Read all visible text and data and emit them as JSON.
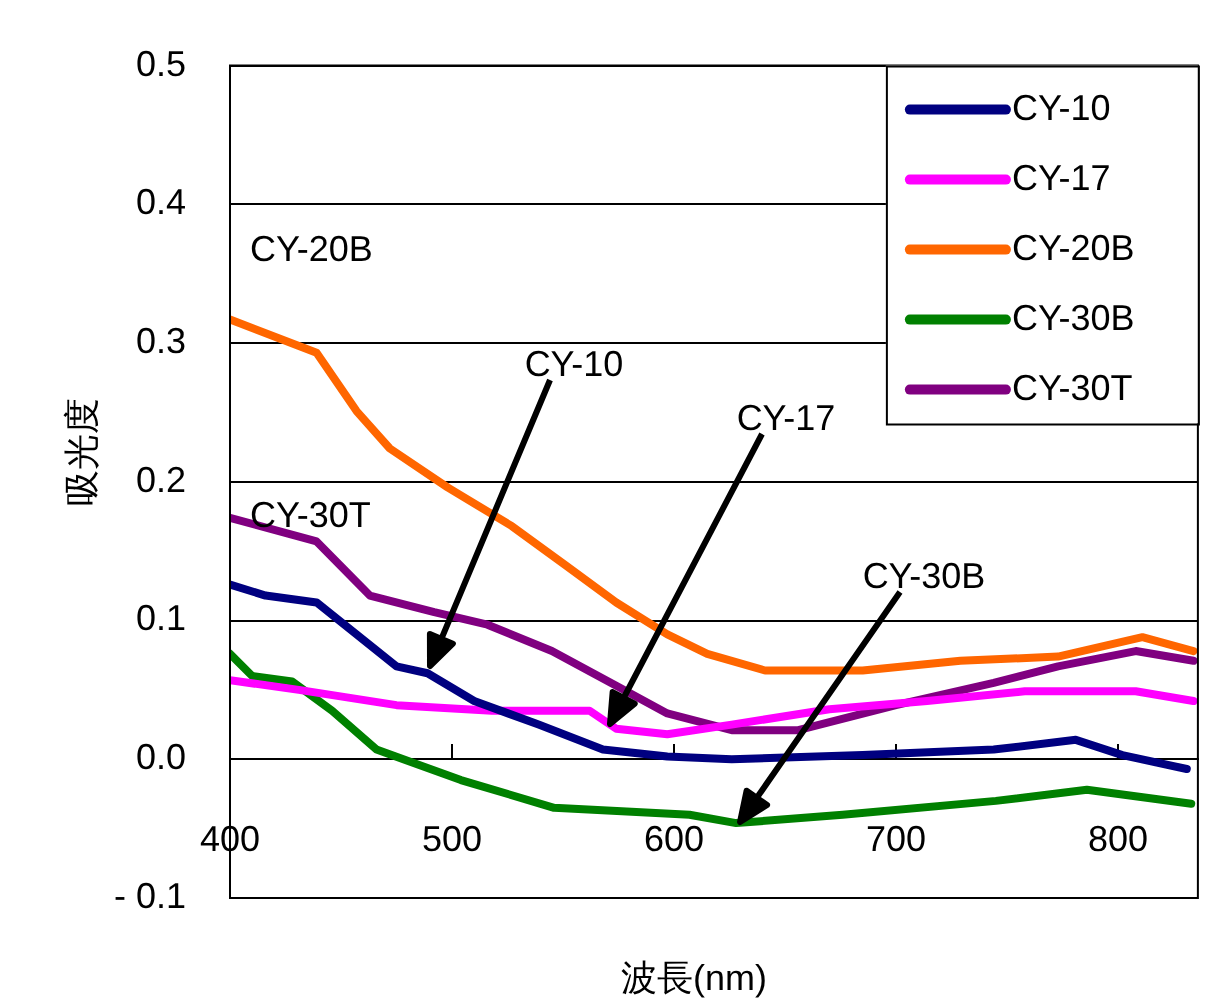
{
  "chart_data": {
    "type": "line",
    "xlabel": "波長(nm)",
    "ylabel": "吸光度",
    "xlim": [
      400,
      836
    ],
    "xticks": [
      400,
      500,
      600,
      700,
      800
    ],
    "ylim": [
      -0.1,
      0.5
    ],
    "yticks": [
      {
        "value": -0.1,
        "label": "- 0.1"
      },
      {
        "value": 0,
        "label": "0.0"
      },
      0.1,
      0.2,
      0.3,
      0.4,
      0.5
    ],
    "grid": "y",
    "legend": "top right",
    "marker": "none",
    "line_style": "solid",
    "series": [
      {
        "name": "CY-10",
        "color": "#000080",
        "x": [
          400,
          416,
          439,
          457,
          475,
          489,
          510,
          539,
          568,
          597,
          626,
          685,
          744,
          781,
          802,
          831
        ],
        "values": [
          0.126,
          0.118,
          0.113,
          0.09,
          0.067,
          0.062,
          0.042,
          0.025,
          0.007,
          0.002,
          0.0,
          0.003,
          0.007,
          0.014,
          0.003,
          -0.007
        ]
      },
      {
        "name": "CY-17",
        "color": "#ff00ff",
        "x": [
          400,
          431,
          475,
          518,
          562,
          574,
          597,
          626,
          670,
          714,
          758,
          808,
          834
        ],
        "values": [
          0.057,
          0.05,
          0.039,
          0.035,
          0.035,
          0.022,
          0.018,
          0.025,
          0.036,
          0.042,
          0.049,
          0.049,
          0.042
        ]
      },
      {
        "name": "CY-20B",
        "color": "#ff6600",
        "x": [
          400,
          439,
          457,
          472,
          498,
          527,
          551,
          574,
          597,
          615,
          641,
          685,
          729,
          773,
          811,
          834
        ],
        "values": [
          0.317,
          0.293,
          0.251,
          0.224,
          0.196,
          0.168,
          0.14,
          0.113,
          0.09,
          0.076,
          0.064,
          0.064,
          0.071,
          0.074,
          0.088,
          0.078
        ]
      },
      {
        "name": "CY-30B",
        "color": "#008000",
        "x": [
          400,
          410,
          428,
          446,
          466,
          504,
          546,
          607,
          628,
          676,
          745,
          786,
          833
        ],
        "values": [
          0.076,
          0.06,
          0.056,
          0.035,
          0.007,
          -0.015,
          -0.035,
          -0.04,
          -0.046,
          -0.04,
          -0.03,
          -0.022,
          -0.032
        ]
      },
      {
        "name": "CY-30T",
        "color": "#800080",
        "x": [
          400,
          439,
          463,
          492,
          516,
          545,
          574,
          597,
          626,
          656,
          700,
          744,
          773,
          808,
          834
        ],
        "values": [
          0.174,
          0.157,
          0.118,
          0.106,
          0.097,
          0.078,
          0.053,
          0.033,
          0.021,
          0.021,
          0.039,
          0.055,
          0.067,
          0.078,
          0.071
        ]
      }
    ],
    "annotations": [
      {
        "text": "CY-20B",
        "x": 400,
        "y": 0.317
      },
      {
        "text": "CY-30T",
        "x": 400,
        "y": 0.174
      },
      "CY-10",
      "CY-17",
      "CY-30B"
    ]
  }
}
